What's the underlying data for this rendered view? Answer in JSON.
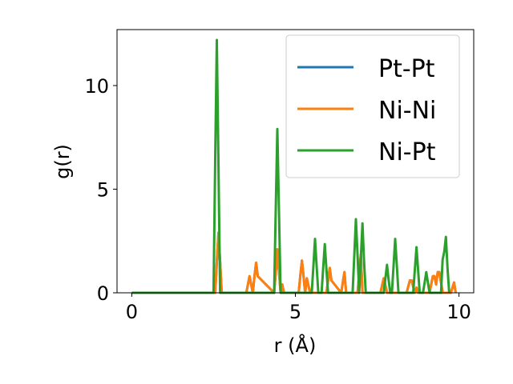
{
  "chart_data": {
    "type": "line",
    "xlabel": "r (Å)",
    "ylabel": "g(r)",
    "xlim": [
      -0.45,
      10.45
    ],
    "ylim": [
      0,
      12.7
    ],
    "xticks": [
      0,
      5,
      10
    ],
    "yticks": [
      0,
      5,
      10
    ],
    "grid": false,
    "legend_position": "top-right",
    "series": [
      {
        "name": "Pt-Pt",
        "color": "#1f77b4",
        "x": [
          0,
          2.5,
          2.55,
          2.6,
          2.65,
          2.7,
          2.75,
          3.5,
          3.55,
          3.6,
          3.65,
          3.7,
          3.75,
          3.8,
          3.85,
          4.35,
          4.4,
          4.45,
          4.5,
          4.55,
          4.6,
          4.65,
          5.1,
          5.15,
          5.2,
          5.25,
          5.3,
          5.35,
          5.4,
          5.45,
          5.5,
          5.95,
          6.0,
          6.05,
          6.1,
          6.4,
          6.45,
          6.5,
          6.55,
          6.9,
          6.95,
          7.0,
          7.05,
          7.6,
          7.65,
          7.7,
          7.75,
          7.8,
          8.4,
          8.45,
          8.5,
          8.55,
          8.6,
          8.65,
          8.7,
          8.75,
          9.1,
          9.15,
          9.2,
          9.25,
          9.3,
          9.35,
          9.4,
          9.45,
          9.5,
          9.75,
          9.8,
          9.85,
          9.9
        ],
        "y": [
          0,
          0,
          0,
          1.5,
          2.9,
          1.5,
          0,
          0,
          0.4,
          0.8,
          0.4,
          0,
          0.8,
          1.45,
          0.8,
          0,
          1.0,
          2.1,
          1.0,
          0,
          0.4,
          0,
          0,
          0.8,
          1.55,
          0.8,
          0,
          0.7,
          0.35,
          0,
          0,
          0,
          0.6,
          1.2,
          0.6,
          0,
          0.5,
          1.0,
          0,
          0,
          0.9,
          1.85,
          0,
          0,
          0.35,
          0.7,
          0.35,
          0,
          0,
          0.3,
          0.6,
          0.6,
          0.3,
          0,
          0.25,
          0,
          0,
          0.4,
          0.8,
          0.8,
          0.4,
          1.0,
          1.0,
          0.5,
          0,
          0,
          0.25,
          0.5,
          0
        ]
      },
      {
        "name": "Ni-Ni",
        "color": "#ff7f0e",
        "x": [
          0,
          2.5,
          2.55,
          2.6,
          2.65,
          2.7,
          2.75,
          3.5,
          3.55,
          3.6,
          3.65,
          3.7,
          3.75,
          3.8,
          3.85,
          4.35,
          4.4,
          4.45,
          4.5,
          4.55,
          4.6,
          4.65,
          5.1,
          5.15,
          5.2,
          5.25,
          5.3,
          5.35,
          5.4,
          5.45,
          5.5,
          5.95,
          6.0,
          6.05,
          6.1,
          6.4,
          6.45,
          6.5,
          6.55,
          6.9,
          6.95,
          7.0,
          7.05,
          7.6,
          7.65,
          7.7,
          7.75,
          7.8,
          8.4,
          8.45,
          8.5,
          8.55,
          8.6,
          8.65,
          8.7,
          8.75,
          9.1,
          9.15,
          9.2,
          9.25,
          9.3,
          9.35,
          9.4,
          9.45,
          9.5,
          9.75,
          9.8,
          9.85,
          9.9
        ],
        "y": [
          0,
          0,
          0,
          1.5,
          2.9,
          1.5,
          0,
          0,
          0.4,
          0.8,
          0.4,
          0,
          0.8,
          1.45,
          0.8,
          0,
          1.0,
          2.1,
          1.0,
          0,
          0.4,
          0,
          0,
          0.8,
          1.55,
          0.8,
          0,
          0.7,
          0.35,
          0,
          0,
          0,
          0.6,
          1.2,
          0.6,
          0,
          0.5,
          1.0,
          0,
          0,
          0.9,
          1.85,
          0,
          0,
          0.35,
          0.7,
          0.35,
          0,
          0,
          0.3,
          0.6,
          0.6,
          0.3,
          0,
          0.25,
          0,
          0,
          0.4,
          0.8,
          0.8,
          0.4,
          1.0,
          1.0,
          0.5,
          0,
          0,
          0.25,
          0.5,
          0
        ]
      },
      {
        "name": "Ni-Pt",
        "color": "#2ca02c",
        "x": [
          0,
          2.5,
          2.55,
          2.6,
          2.65,
          2.7,
          4.35,
          4.4,
          4.45,
          4.5,
          4.55,
          5.5,
          5.55,
          5.6,
          5.65,
          5.7,
          5.8,
          5.85,
          5.9,
          5.95,
          6.0,
          6.75,
          6.8,
          6.85,
          6.9,
          6.95,
          7.0,
          7.05,
          7.1,
          7.15,
          7.7,
          7.75,
          7.8,
          7.85,
          7.9,
          7.95,
          8.0,
          8.05,
          8.1,
          8.15,
          8.6,
          8.65,
          8.7,
          8.75,
          8.8,
          8.9,
          8.95,
          9.0,
          9.05,
          9.1,
          9.45,
          9.5,
          9.55,
          9.6,
          9.65,
          9.7
        ],
        "y": [
          0,
          0,
          6.5,
          12.2,
          6.0,
          0,
          0,
          4.0,
          7.9,
          3.8,
          0,
          0,
          1.3,
          2.6,
          1.3,
          0,
          0,
          1.2,
          2.35,
          1.1,
          0,
          0,
          1.8,
          3.55,
          1.8,
          0,
          1.7,
          3.35,
          1.5,
          0,
          0,
          0.7,
          1.35,
          0.6,
          0,
          0,
          1.3,
          2.6,
          1.3,
          0,
          0,
          1.1,
          2.2,
          1.1,
          0,
          0,
          0.5,
          1.0,
          0.5,
          0,
          0,
          1.6,
          2.0,
          2.7,
          1.2,
          0
        ]
      }
    ]
  }
}
